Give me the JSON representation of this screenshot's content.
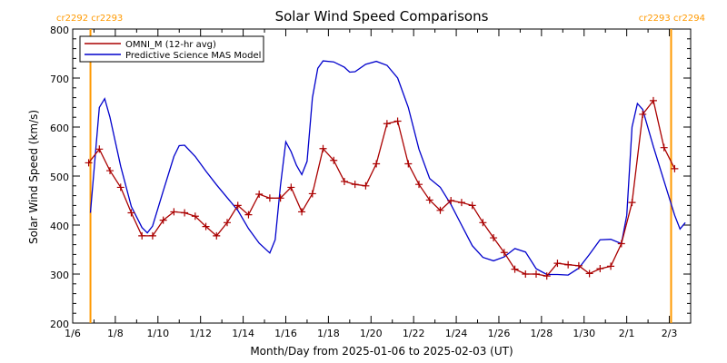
{
  "chart_data": {
    "type": "line",
    "title": "Solar Wind Speed Comparisons",
    "xlabel": "Month/Day from 2025-01-06 to 2025-02-03 (UT)",
    "ylabel": "Solar Wind Speed (km/s)",
    "xlim": [
      "2025-01-06",
      "2025-02-03"
    ],
    "ylim": [
      200,
      800
    ],
    "yticks": [
      200,
      300,
      400,
      500,
      600,
      700,
      800
    ],
    "xticks": [
      {
        "date": "2025-01-06",
        "label": "1/6"
      },
      {
        "date": "2025-01-08",
        "label": "1/8"
      },
      {
        "date": "2025-01-10",
        "label": "1/10"
      },
      {
        "date": "2025-01-12",
        "label": "1/12"
      },
      {
        "date": "2025-01-14",
        "label": "1/14"
      },
      {
        "date": "2025-01-16",
        "label": "1/16"
      },
      {
        "date": "2025-01-18",
        "label": "1/18"
      },
      {
        "date": "2025-01-20",
        "label": "1/20"
      },
      {
        "date": "2025-01-22",
        "label": "1/22"
      },
      {
        "date": "2025-01-24",
        "label": "1/24"
      },
      {
        "date": "2025-01-26",
        "label": "1/26"
      },
      {
        "date": "2025-01-28",
        "label": "1/28"
      },
      {
        "date": "2025-01-30",
        "label": "1/30"
      },
      {
        "date": "2025-02-01",
        "label": "2/1"
      },
      {
        "date": "2025-02-03",
        "label": "2/3"
      }
    ],
    "grid": false,
    "legend_position": "top-left",
    "carrington_markers": [
      {
        "date": "2025-01-06T20:00",
        "label": "cr2292 cr2293",
        "label_side": "top-left"
      },
      {
        "date": "2025-02-03T02:00",
        "label": "cr2293 cr2294",
        "label_side": "top-right"
      }
    ],
    "marker_color": "#ff9900",
    "series": [
      {
        "name": "OMNI_M (12-hr avg)",
        "color": "#aa0000",
        "marker": "+",
        "points": [
          [
            "2025-01-06T18:00",
            527
          ],
          [
            "2025-01-07T06:00",
            555
          ],
          [
            "2025-01-07T18:00",
            511
          ],
          [
            "2025-01-08T06:00",
            477
          ],
          [
            "2025-01-08T18:00",
            425
          ],
          [
            "2025-01-09T06:00",
            378
          ],
          [
            "2025-01-09T18:00",
            378
          ],
          [
            "2025-01-10T06:00",
            410
          ],
          [
            "2025-01-10T18:00",
            427
          ],
          [
            "2025-01-11T06:00",
            425
          ],
          [
            "2025-01-11T18:00",
            418
          ],
          [
            "2025-01-12T06:00",
            397
          ],
          [
            "2025-01-12T18:00",
            378
          ],
          [
            "2025-01-13T06:00",
            405
          ],
          [
            "2025-01-13T18:00",
            440
          ],
          [
            "2025-01-14T06:00",
            421
          ],
          [
            "2025-01-14T18:00",
            463
          ],
          [
            "2025-01-15T06:00",
            455
          ],
          [
            "2025-01-15T18:00",
            455
          ],
          [
            "2025-01-16T06:00",
            477
          ],
          [
            "2025-01-16T18:00",
            427
          ],
          [
            "2025-01-17T06:00",
            464
          ],
          [
            "2025-01-17T18:00",
            556
          ],
          [
            "2025-01-18T06:00",
            532
          ],
          [
            "2025-01-18T18:00",
            489
          ],
          [
            "2025-01-19T06:00",
            483
          ],
          [
            "2025-01-19T18:00",
            480
          ],
          [
            "2025-01-20T06:00",
            525
          ],
          [
            "2025-01-20T18:00",
            607
          ],
          [
            "2025-01-21T06:00",
            612
          ],
          [
            "2025-01-21T18:00",
            525
          ],
          [
            "2025-01-22T06:00",
            483
          ],
          [
            "2025-01-22T18:00",
            451
          ],
          [
            "2025-01-23T06:00",
            430
          ],
          [
            "2025-01-23T18:00",
            450
          ],
          [
            "2025-01-24T06:00",
            446
          ],
          [
            "2025-01-24T18:00",
            440
          ],
          [
            "2025-01-25T06:00",
            405
          ],
          [
            "2025-01-25T18:00",
            374
          ],
          [
            "2025-01-26T06:00",
            344
          ],
          [
            "2025-01-26T18:00",
            310
          ],
          [
            "2025-01-27T06:00",
            300
          ],
          [
            "2025-01-27T18:00",
            300
          ],
          [
            "2025-01-28T06:00",
            296
          ],
          [
            "2025-01-28T18:00",
            322
          ],
          [
            "2025-01-29T06:00",
            319
          ],
          [
            "2025-01-29T18:00",
            317
          ],
          [
            "2025-01-30T06:00",
            301
          ],
          [
            "2025-01-30T18:00",
            311
          ],
          [
            "2025-01-31T06:00",
            316
          ],
          [
            "2025-01-31T18:00",
            362
          ],
          [
            "2025-02-01T06:00",
            446
          ],
          [
            "2025-02-01T18:00",
            626
          ],
          [
            "2025-02-02T06:00",
            654
          ],
          [
            "2025-02-02T18:00",
            558
          ],
          [
            "2025-02-03T06:00",
            515
          ]
        ]
      },
      {
        "name": "Predictive Science MAS Model",
        "color": "#0000cc",
        "marker": "",
        "points": [
          [
            "2025-01-06T20:00",
            425
          ],
          [
            "2025-01-07T06:00",
            640
          ],
          [
            "2025-01-07T12:00",
            658
          ],
          [
            "2025-01-07T18:00",
            620
          ],
          [
            "2025-01-08T06:00",
            520
          ],
          [
            "2025-01-08T18:00",
            438
          ],
          [
            "2025-01-09T06:00",
            395
          ],
          [
            "2025-01-09T12:00",
            384
          ],
          [
            "2025-01-09T18:00",
            398
          ],
          [
            "2025-01-10T06:00",
            470
          ],
          [
            "2025-01-10T18:00",
            540
          ],
          [
            "2025-01-11T00:00",
            562
          ],
          [
            "2025-01-11T06:00",
            563
          ],
          [
            "2025-01-11T18:00",
            540
          ],
          [
            "2025-01-12T06:00",
            510
          ],
          [
            "2025-01-12T18:00",
            482
          ],
          [
            "2025-01-13T06:00",
            456
          ],
          [
            "2025-01-13T18:00",
            430
          ],
          [
            "2025-01-14T06:00",
            393
          ],
          [
            "2025-01-14T18:00",
            363
          ],
          [
            "2025-01-15T06:00",
            343
          ],
          [
            "2025-01-15T12:00",
            370
          ],
          [
            "2025-01-15T18:00",
            480
          ],
          [
            "2025-01-16T00:00",
            570
          ],
          [
            "2025-01-16T06:00",
            550
          ],
          [
            "2025-01-16T12:00",
            522
          ],
          [
            "2025-01-16T18:00",
            503
          ],
          [
            "2025-01-17T00:00",
            530
          ],
          [
            "2025-01-17T06:00",
            660
          ],
          [
            "2025-01-17T12:00",
            720
          ],
          [
            "2025-01-17T18:00",
            735
          ],
          [
            "2025-01-18T06:00",
            733
          ],
          [
            "2025-01-18T18:00",
            722
          ],
          [
            "2025-01-19T00:00",
            712
          ],
          [
            "2025-01-19T06:00",
            713
          ],
          [
            "2025-01-19T18:00",
            728
          ],
          [
            "2025-01-20T06:00",
            734
          ],
          [
            "2025-01-20T18:00",
            726
          ],
          [
            "2025-01-21T06:00",
            700
          ],
          [
            "2025-01-21T18:00",
            640
          ],
          [
            "2025-01-22T06:00",
            555
          ],
          [
            "2025-01-22T18:00",
            495
          ],
          [
            "2025-01-23T06:00",
            477
          ],
          [
            "2025-01-23T18:00",
            442
          ],
          [
            "2025-01-24T06:00",
            400
          ],
          [
            "2025-01-24T18:00",
            358
          ],
          [
            "2025-01-25T06:00",
            334
          ],
          [
            "2025-01-25T18:00",
            327
          ],
          [
            "2025-01-26T06:00",
            335
          ],
          [
            "2025-01-26T18:00",
            352
          ],
          [
            "2025-01-27T06:00",
            345
          ],
          [
            "2025-01-27T18:00",
            311
          ],
          [
            "2025-01-28T06:00",
            299
          ],
          [
            "2025-01-28T18:00",
            299
          ],
          [
            "2025-01-29T06:00",
            298
          ],
          [
            "2025-01-29T18:00",
            312
          ],
          [
            "2025-01-30T06:00",
            340
          ],
          [
            "2025-01-30T18:00",
            370
          ],
          [
            "2025-01-31T06:00",
            371
          ],
          [
            "2025-01-31T18:00",
            362
          ],
          [
            "2025-02-01T00:00",
            420
          ],
          [
            "2025-02-01T06:00",
            600
          ],
          [
            "2025-02-01T12:00",
            648
          ],
          [
            "2025-02-01T18:00",
            636
          ],
          [
            "2025-02-02T06:00",
            560
          ],
          [
            "2025-02-02T18:00",
            490
          ],
          [
            "2025-02-03T06:00",
            420
          ],
          [
            "2025-02-03T12:00",
            392
          ],
          [
            "2025-02-03T18:00",
            405
          ]
        ]
      }
    ]
  }
}
